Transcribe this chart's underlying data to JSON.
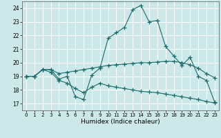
{
  "title": "",
  "xlabel": "Humidex (Indice chaleur)",
  "bg_color": "#cce8e8",
  "grid_color": "#ffffff",
  "line_color": "#1a6b6b",
  "xlim": [
    -0.5,
    23.5
  ],
  "ylim": [
    16.5,
    24.5
  ],
  "yticks": [
    17,
    18,
    19,
    20,
    21,
    22,
    23,
    24
  ],
  "xticks": [
    0,
    1,
    2,
    3,
    4,
    5,
    6,
    7,
    8,
    9,
    10,
    11,
    12,
    13,
    14,
    15,
    16,
    17,
    18,
    19,
    20,
    21,
    22,
    23
  ],
  "series": [
    {
      "x": [
        0,
        1,
        2,
        3,
        4,
        5,
        6,
        7,
        8,
        9,
        10,
        11,
        12,
        13,
        14,
        15,
        16,
        17,
        18,
        19,
        20,
        21,
        22,
        23
      ],
      "y": [
        19.0,
        19.0,
        19.5,
        19.5,
        18.8,
        19.0,
        17.5,
        17.3,
        19.1,
        19.6,
        21.8,
        22.2,
        22.6,
        23.9,
        24.2,
        23.0,
        23.1,
        21.2,
        20.5,
        19.8,
        20.4,
        19.0,
        18.7,
        17.1
      ]
    },
    {
      "x": [
        0,
        1,
        2,
        3,
        4,
        5,
        6,
        7,
        8,
        9,
        10,
        11,
        12,
        13,
        14,
        15,
        16,
        17,
        18,
        19,
        20,
        21,
        22,
        23
      ],
      "y": [
        19.0,
        19.0,
        19.5,
        19.5,
        19.2,
        19.3,
        19.4,
        19.5,
        19.6,
        19.7,
        19.8,
        19.85,
        19.9,
        19.95,
        20.0,
        20.0,
        20.05,
        20.1,
        20.1,
        20.0,
        19.85,
        19.6,
        19.2,
        18.9
      ]
    },
    {
      "x": [
        0,
        1,
        2,
        3,
        4,
        5,
        6,
        7,
        8,
        9,
        10,
        11,
        12,
        13,
        14,
        15,
        16,
        17,
        18,
        19,
        20,
        21,
        22,
        23
      ],
      "y": [
        19.0,
        19.0,
        19.5,
        19.3,
        18.7,
        18.5,
        18.1,
        17.8,
        18.2,
        18.5,
        18.3,
        18.2,
        18.1,
        18.0,
        17.9,
        17.85,
        17.8,
        17.7,
        17.6,
        17.5,
        17.4,
        17.3,
        17.15,
        17.05
      ]
    }
  ]
}
